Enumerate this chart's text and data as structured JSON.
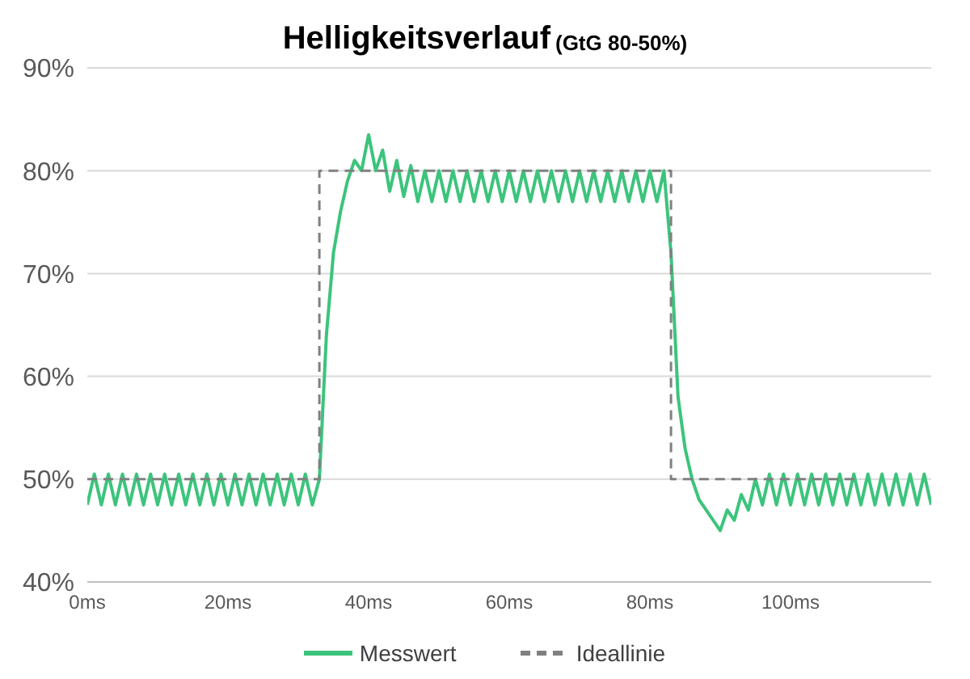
{
  "chart_data": {
    "type": "line",
    "title": "Helligkeitsverlauf",
    "subtitle": "(GtG 80-50%)",
    "xlim": [
      0,
      120
    ],
    "xticks": [
      {
        "value": 0,
        "label": "0ms"
      },
      {
        "value": 20,
        "label": "20ms"
      },
      {
        "value": 40,
        "label": "40ms"
      },
      {
        "value": 60,
        "label": "60ms"
      },
      {
        "value": 80,
        "label": "80ms"
      },
      {
        "value": 100,
        "label": "100ms"
      }
    ],
    "ylim": [
      40,
      90
    ],
    "yticks": [
      {
        "value": 40,
        "label": "40%"
      },
      {
        "value": 50,
        "label": "50%"
      },
      {
        "value": 60,
        "label": "60%"
      },
      {
        "value": 70,
        "label": "70%"
      },
      {
        "value": 80,
        "label": "80%"
      },
      {
        "value": 90,
        "label": "90%"
      }
    ],
    "grid": "y",
    "legend": "bottom",
    "marker": "none",
    "series": [
      {
        "name": "Messwert",
        "color": "#3cc47c",
        "line_style": "solid",
        "x": [
          0,
          1,
          2,
          3,
          4,
          5,
          6,
          7,
          8,
          9,
          10,
          11,
          12,
          13,
          14,
          15,
          16,
          17,
          18,
          19,
          20,
          21,
          22,
          23,
          24,
          25,
          26,
          27,
          28,
          29,
          30,
          31,
          32,
          33,
          34,
          35,
          36,
          37,
          38,
          39,
          40,
          41,
          42,
          43,
          44,
          45,
          46,
          47,
          48,
          49,
          50,
          51,
          52,
          53,
          54,
          55,
          56,
          57,
          58,
          59,
          60,
          61,
          62,
          63,
          64,
          65,
          66,
          67,
          68,
          69,
          70,
          71,
          72,
          73,
          74,
          75,
          76,
          77,
          78,
          79,
          80,
          81,
          82,
          83,
          84,
          85,
          86,
          87,
          88,
          89,
          90,
          91,
          92,
          93,
          94,
          95,
          96,
          97,
          98,
          99,
          100,
          101,
          102,
          103,
          104,
          105,
          106,
          107,
          108,
          109,
          110,
          111,
          112,
          113,
          114,
          115,
          116,
          117,
          118,
          119,
          120
        ],
        "values": [
          47.5,
          50.5,
          47.5,
          50.5,
          47.5,
          50.5,
          47.5,
          50.5,
          47.5,
          50.5,
          47.5,
          50.5,
          47.5,
          50.5,
          47.5,
          50.5,
          47.5,
          50.5,
          47.5,
          50.5,
          47.5,
          50.5,
          47.5,
          50.5,
          47.5,
          50.5,
          47.5,
          50.5,
          47.5,
          50.5,
          47.5,
          50.5,
          47.5,
          50,
          64,
          72,
          76,
          79,
          81,
          80,
          83.5,
          80,
          82,
          78,
          81,
          77.5,
          80.5,
          77,
          80,
          77,
          80,
          77,
          80,
          77,
          80,
          77,
          80,
          77,
          80,
          77,
          80,
          77,
          80,
          77,
          80,
          77,
          80,
          77,
          80,
          77,
          80,
          77,
          80,
          77,
          80,
          77,
          80,
          77,
          80,
          77,
          80,
          77,
          80,
          72,
          58,
          53,
          50,
          48,
          47,
          46,
          45,
          47,
          46,
          48.5,
          47,
          50,
          47.5,
          50.5,
          47.5,
          50.5,
          47.5,
          50.5,
          47.5,
          50.5,
          47.5,
          50.5,
          47.5,
          50.5,
          47.5,
          50.5,
          47.5,
          50.5,
          47.5,
          50.5,
          47.5,
          50.5,
          47.5,
          50.5,
          47.5,
          50.5,
          47.5
        ]
      },
      {
        "name": "Ideallinie",
        "color": "#808080",
        "line_style": "dashed",
        "x": [
          0,
          33,
          33,
          83,
          83,
          110
        ],
        "values": [
          50,
          50,
          80,
          80,
          50,
          50
        ]
      }
    ]
  }
}
